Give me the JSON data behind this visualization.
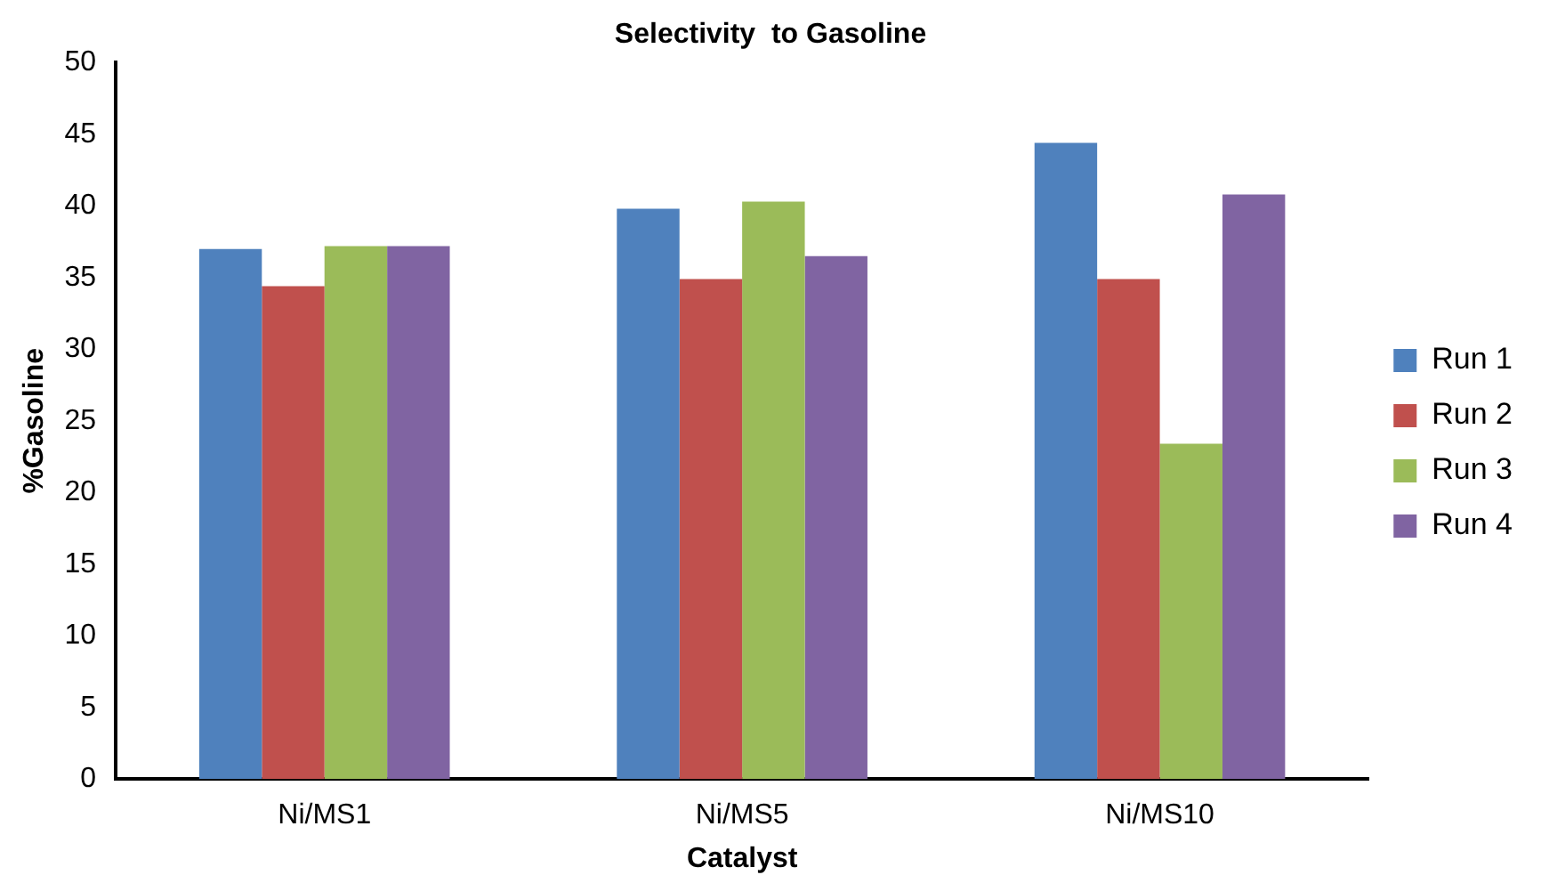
{
  "chart_data": {
    "type": "bar",
    "title": "Selectivity  to Gasoline",
    "xlabel": "Catalyst",
    "ylabel": "%Gasoline",
    "categories": [
      "Ni/MS1",
      "Ni/MS5",
      "Ni/MS10"
    ],
    "series": [
      {
        "name": "Run 1",
        "color": "#4f81bd",
        "values": [
          37.0,
          39.8,
          44.4
        ]
      },
      {
        "name": "Run 2",
        "color": "#c0504d",
        "values": [
          34.4,
          34.9,
          34.9
        ]
      },
      {
        "name": "Run 3",
        "color": "#9bbb59",
        "values": [
          37.2,
          40.3,
          23.4
        ]
      },
      {
        "name": "Run 4",
        "color": "#8064a2",
        "values": [
          37.2,
          36.5,
          40.8
        ]
      }
    ],
    "ylim": [
      0,
      50
    ],
    "yticks": [
      0,
      5,
      10,
      15,
      20,
      25,
      30,
      35,
      40,
      45,
      50
    ],
    "grid": false,
    "legend": "right"
  }
}
